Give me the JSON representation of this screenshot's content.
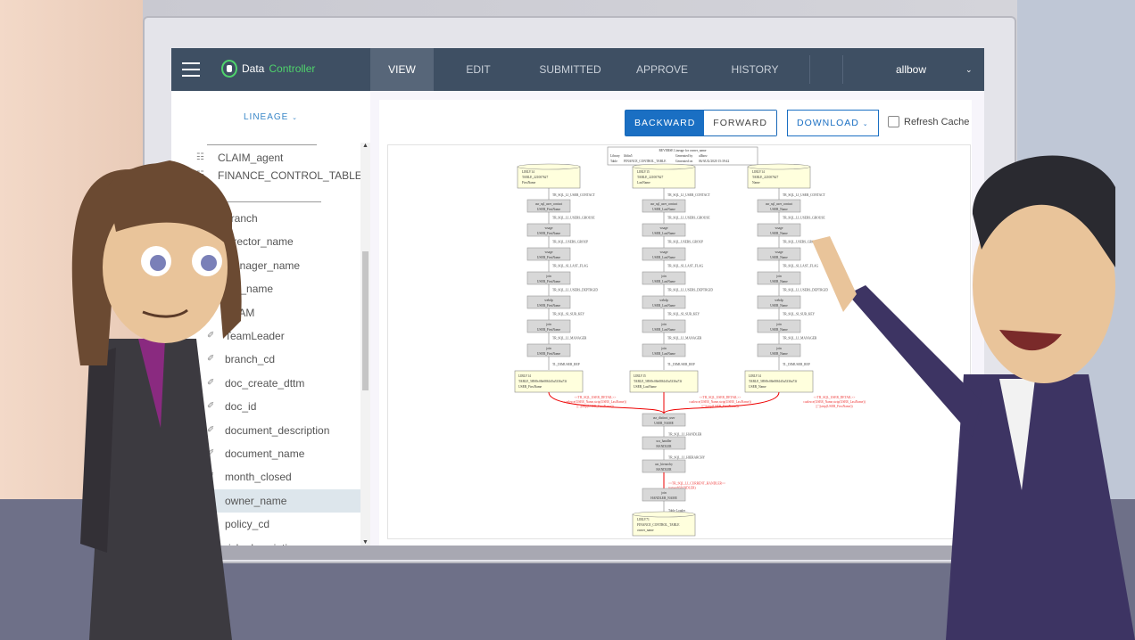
{
  "app": {
    "logo_text_1": "Data",
    "logo_text_2": "Controller",
    "accent": "#4fd36b",
    "topbar_color": "#3e4f63"
  },
  "nav": {
    "items": [
      {
        "label": "VIEW",
        "active": true
      },
      {
        "label": "EDIT"
      },
      {
        "label": "SUBMITTED"
      },
      {
        "label": "APPROVE"
      },
      {
        "label": "HISTORY"
      }
    ],
    "user": "allbow"
  },
  "sidebar": {
    "lineage_label": "LINEAGE",
    "items": [
      {
        "label": "CLAIM_agent",
        "icon": "table-icon",
        "top": true
      },
      {
        "label": "FINANCE_CONTROL_TABLE",
        "icon": "table-icon",
        "top": true
      },
      {
        "label": "o",
        "icon": "",
        "top": true
      },
      {
        "label": "branch",
        "icon": "column-icon"
      },
      {
        "label": "director_name",
        "icon": "column-icon"
      },
      {
        "label": "manager_name",
        "icon": "column-icon"
      },
      {
        "label": "org_name",
        "icon": "column-icon"
      },
      {
        "label": "TEAM",
        "icon": "column-icon"
      },
      {
        "label": "TeamLeader",
        "icon": "column-icon"
      },
      {
        "label": "branch_cd",
        "icon": "column-icon"
      },
      {
        "label": "doc_create_dttm",
        "icon": "column-icon"
      },
      {
        "label": "doc_id",
        "icon": "column-icon"
      },
      {
        "label": "document_description",
        "icon": "column-icon"
      },
      {
        "label": "document_name",
        "icon": "column-icon"
      },
      {
        "label": "month_closed",
        "icon": "column-icon"
      },
      {
        "label": "owner_name",
        "icon": "column-icon",
        "selected": true
      },
      {
        "label": "policy_cd",
        "icon": "column-icon"
      },
      {
        "label": "risk_description",
        "icon": "column-icon"
      }
    ]
  },
  "toolbar": {
    "backward": "BACKWARD",
    "forward": "FORWARD",
    "download": "DOWNLOAD",
    "refresh_cache": "Refresh Cache",
    "refresh_checked": false
  },
  "diagram": {
    "header": {
      "title": "REVERSE Lineage for owner_name",
      "row1": [
        "Library",
        "libfin5",
        "Generated by",
        "allbow"
      ],
      "row2": [
        "Table",
        "FINANCE_CONTROL_TABLE",
        "Generated on",
        "06/AUG/2020 15:39:42"
      ]
    },
    "columns": [
      {
        "library": "LIBLV14",
        "table": "TABLE_221007627",
        "column": "FirstName",
        "mid_table": "TABLE_589f9c08e0861d5a5336a73f",
        "suffix": "USER_FirstName"
      },
      {
        "library": "LIBLV15",
        "table": "TABLE_221007627",
        "column": "LastName",
        "mid_table": "TABLE_589f9c08e0861d5a5336a73f",
        "suffix": "USER_LastName"
      },
      {
        "library": "LIBLV14",
        "table": "TABLE_221007627",
        "column": "Name",
        "mid_table": "TABLE_589f9c08e0861d5a5336a73f",
        "suffix": "USER_Name"
      }
    ],
    "chain_tables": [
      "usr_sql_user_contact",
      "wsage",
      "wsage",
      "join",
      "webdp",
      "join",
      "join"
    ],
    "chain_edges": [
      "TR_SQL_LI_USER_CONTACT",
      "TR_SQL_LI_USERS_GROUSE",
      "TR_SQL_USERS_GROUP",
      "TR_SQL_SI_LAST_FLAG",
      "TR_SQL_LI_USERS_DEPTRGID",
      "TR_SQL_SI_SUB_KEY",
      "TR_SQL_LI_MANAGER",
      "TL_DIMUSER_REP"
    ],
    "merge_label": [
      "<<TR_SQL_USER_DETAIL>>",
      "coalesce(USER_Name,strip(USER_LastName))",
      "||','||strip(USER_FirstName))"
    ],
    "tail": [
      {
        "table": "usr_distinct_user",
        "column": "USER_NAME",
        "edge": "TR_SQL_LI_HANDLER"
      },
      {
        "table": "usr_handler",
        "column": "HANDLER",
        "edge": "TR_SQL_LI_HIERARCHY"
      },
      {
        "table": "usr_hierarchy",
        "column": "HANDLER",
        "edge": "<<TR_SQL_LI_CURRENT_HANDLER>>",
        "edge2": "tranwrd(HANDLER)",
        "red": true
      },
      {
        "table": "join",
        "column": "HANDLER_NAME",
        "edge": "Table Loader"
      }
    ],
    "target": {
      "library": "LIBLV71",
      "table": "FINANCE_CONTROL_TABLE",
      "column": "owner_name"
    }
  }
}
